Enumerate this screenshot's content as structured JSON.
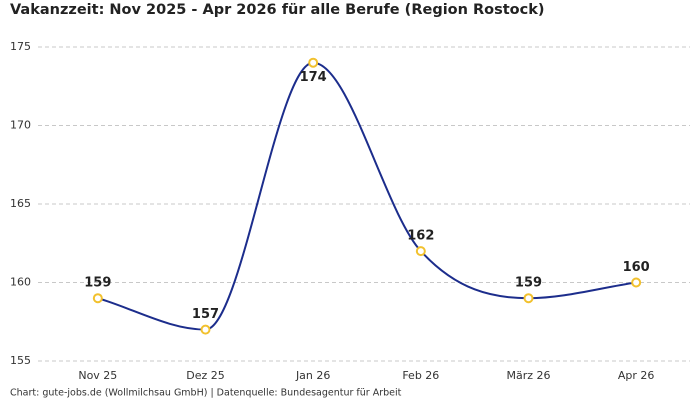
{
  "chart_data": {
    "type": "line",
    "title": "Vakanzzeit: Nov 2025 - Apr 2026 für alle Berufe (Region Rostock)",
    "source": "Chart: gute-jobs.de (Wollmilchsau GmbH) | Datenquelle: Bundesagentur für Arbeit",
    "categories": [
      "Nov 25",
      "Dez 25",
      "Jan 26",
      "Feb 26",
      "März 26",
      "Apr 26"
    ],
    "values": [
      159,
      157,
      174,
      162,
      159,
      160
    ],
    "color": "#1c2d8c",
    "marker_color": "#f2c12e",
    "ylim": [
      155,
      175
    ],
    "yticks": [
      155,
      160,
      165,
      170,
      175
    ],
    "grid": true
  }
}
